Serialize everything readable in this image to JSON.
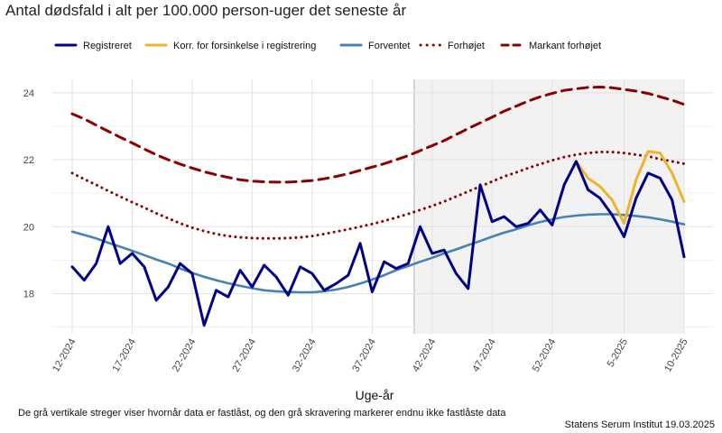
{
  "chart_data": {
    "type": "line",
    "title": "Antal dødsfald i alt per 100.000 person-uger det seneste år",
    "xlabel": "Uge-år",
    "ylabel": "",
    "ylim": [
      16.8,
      24.4
    ],
    "y_ticks": [
      18,
      20,
      22,
      24
    ],
    "x_tick_labels": [
      "12-2024",
      "17-2024",
      "22-2024",
      "27-2024",
      "32-2024",
      "37-2024",
      "42-2024",
      "47-2024",
      "52-2024",
      "5-2025",
      "10-2025"
    ],
    "x_tick_positions": [
      0,
      5,
      10,
      15,
      20,
      25,
      30,
      35,
      40,
      46,
      51
    ],
    "week_count": 52,
    "shade_start_index": 28.5,
    "caption": "De grå vertikale streger viser hvornår data er fastlåst, og den grå skravering markerer endnu ikke fastlåste data",
    "source": "Statens Serum Institut  19.03.2025",
    "legend": [
      {
        "label": "Registreret",
        "color": "#00008B",
        "style": "solid"
      },
      {
        "label": "Korr. for forsinkelse i registrering",
        "color": "#F0B429",
        "style": "solid"
      },
      {
        "label": "Forventet",
        "color": "#4682B4",
        "style": "solid"
      },
      {
        "label": "Forhøjet",
        "color": "#8B0000",
        "style": "dotted"
      },
      {
        "label": "Markant forhøjet",
        "color": "#8B0000",
        "style": "dashed"
      }
    ],
    "series": [
      {
        "name": "Registreret",
        "values": [
          18.8,
          18.4,
          18.9,
          20.0,
          18.9,
          19.2,
          18.8,
          17.8,
          18.2,
          18.9,
          18.6,
          17.05,
          18.1,
          17.9,
          18.7,
          18.2,
          18.85,
          18.5,
          17.95,
          18.8,
          18.6,
          18.1,
          18.3,
          18.55,
          19.5,
          18.05,
          18.95,
          18.75,
          18.9,
          20.0,
          19.2,
          19.3,
          18.6,
          18.15,
          21.25,
          20.15,
          20.3,
          20.0,
          20.1,
          20.5,
          20.05,
          21.25,
          21.95,
          21.1,
          20.85,
          20.35,
          19.7,
          20.85,
          21.6,
          21.45,
          20.8,
          19.1
        ]
      },
      {
        "name": "Korr. for forsinkelse i registrering",
        "start_index": 42,
        "values": [
          21.95,
          21.45,
          21.2,
          20.8,
          20.1,
          21.4,
          22.25,
          22.2,
          21.6,
          20.75
        ]
      },
      {
        "name": "Forventet",
        "values": [
          19.85,
          19.75,
          19.65,
          19.52,
          19.4,
          19.28,
          19.15,
          19.02,
          18.9,
          18.75,
          18.62,
          18.5,
          18.4,
          18.31,
          18.23,
          18.16,
          18.1,
          18.07,
          18.05,
          18.04,
          18.04,
          18.07,
          18.12,
          18.2,
          18.3,
          18.42,
          18.55,
          18.7,
          18.82,
          18.95,
          19.07,
          19.2,
          19.32,
          19.45,
          19.57,
          19.7,
          19.82,
          19.92,
          20.04,
          20.14,
          20.22,
          20.29,
          20.33,
          20.36,
          20.37,
          20.37,
          20.35,
          20.32,
          20.28,
          20.22,
          20.15,
          20.07
        ]
      },
      {
        "name": "Forhøjet",
        "values": [
          21.6,
          21.42,
          21.25,
          21.07,
          20.9,
          20.73,
          20.57,
          20.4,
          20.25,
          20.1,
          19.97,
          19.87,
          19.78,
          19.72,
          19.68,
          19.66,
          19.65,
          19.65,
          19.66,
          19.68,
          19.72,
          19.78,
          19.85,
          19.92,
          20.0,
          20.08,
          20.17,
          20.27,
          20.38,
          20.5,
          20.62,
          20.75,
          20.9,
          21.05,
          21.2,
          21.35,
          21.5,
          21.62,
          21.75,
          21.87,
          21.98,
          22.08,
          22.15,
          22.2,
          22.23,
          22.23,
          22.2,
          22.15,
          22.1,
          22.02,
          21.95,
          21.88
        ]
      },
      {
        "name": "Markant forhøjet",
        "values": [
          23.37,
          23.22,
          23.03,
          22.85,
          22.67,
          22.5,
          22.32,
          22.15,
          22.0,
          21.87,
          21.75,
          21.64,
          21.55,
          21.47,
          21.4,
          21.36,
          21.34,
          21.33,
          21.33,
          21.35,
          21.38,
          21.43,
          21.5,
          21.58,
          21.68,
          21.78,
          21.88,
          22.0,
          22.12,
          22.27,
          22.42,
          22.57,
          22.75,
          22.93,
          23.1,
          23.27,
          23.45,
          23.6,
          23.75,
          23.88,
          23.98,
          24.07,
          24.12,
          24.16,
          24.17,
          24.15,
          24.1,
          24.05,
          23.98,
          23.88,
          23.78,
          23.65
        ]
      }
    ]
  }
}
